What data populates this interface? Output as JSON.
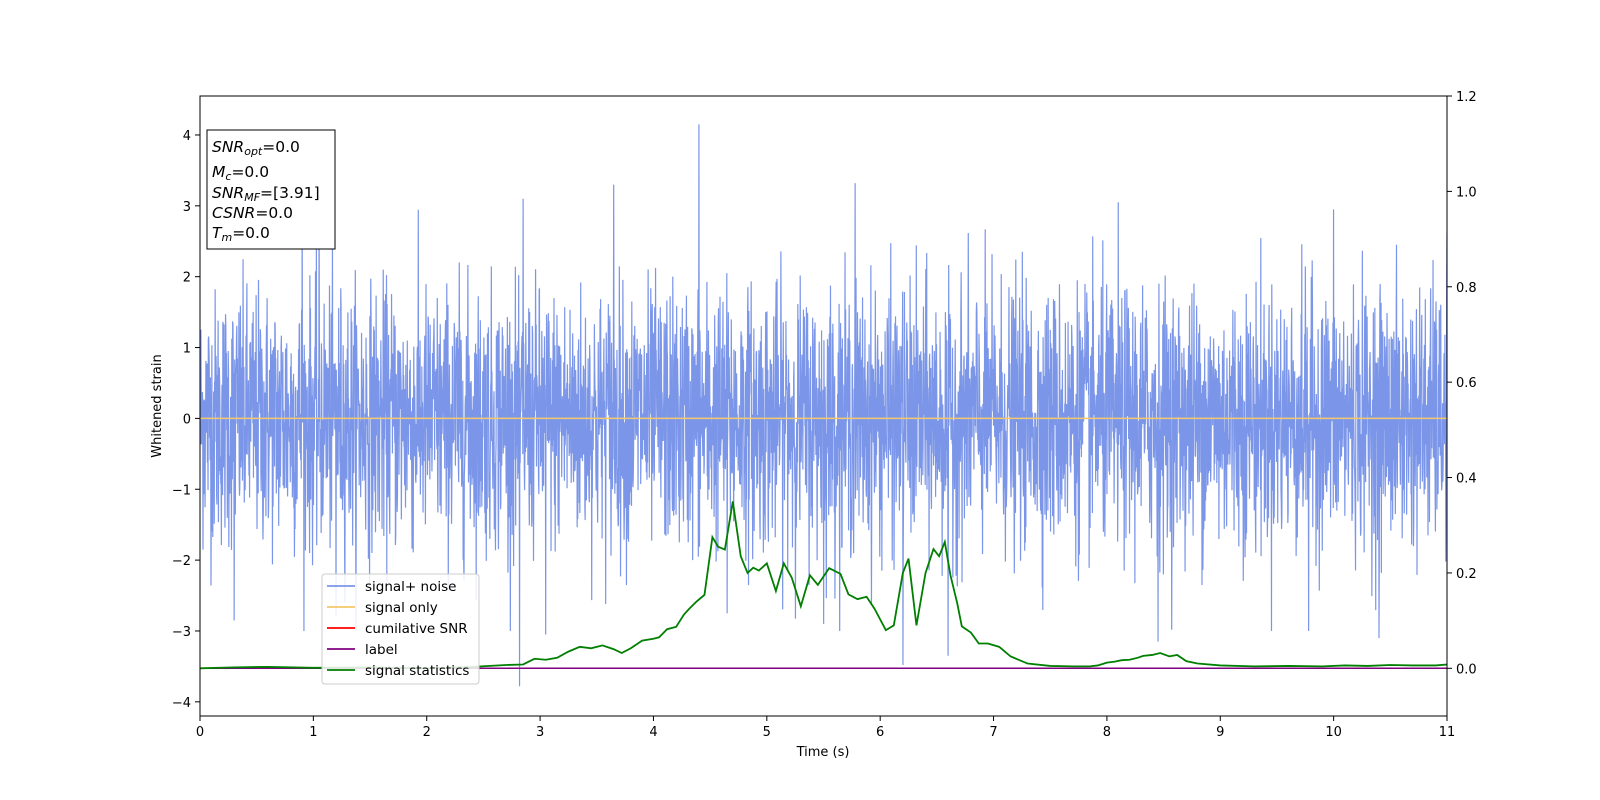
{
  "chart_data": {
    "type": "line",
    "xlabel": "Time (s)",
    "ylabel": "Whitened strain",
    "xlim": [
      0,
      11
    ],
    "ylim": [
      -4.2,
      4.55
    ],
    "ylim_right": [
      -0.1,
      1.2
    ],
    "x_ticks": [
      0,
      1,
      2,
      3,
      4,
      5,
      6,
      7,
      8,
      9,
      10,
      11
    ],
    "y_ticks": [
      -4,
      -3,
      -2,
      -1,
      0,
      1,
      2,
      3,
      4
    ],
    "y_ticks_right": [
      0.0,
      0.2,
      0.4,
      0.6,
      0.8,
      1.0,
      1.2
    ],
    "legend_position": "lower-left",
    "legend": [
      {
        "label": "signal+ noise",
        "color": "#7b96e8"
      },
      {
        "label": "signal only",
        "color": "#f5c86b"
      },
      {
        "label": "cumilative SNR",
        "color": "#ff0000"
      },
      {
        "label": "label",
        "color": "#800080"
      },
      {
        "label": "signal statistics",
        "color": "#007f00"
      }
    ],
    "annotation": [
      {
        "base": "SNR",
        "sub": "opt",
        "value": "=0.0"
      },
      {
        "base": "M",
        "sub": "c",
        "value": "=0.0"
      },
      {
        "base": "SNR",
        "sub": "MF",
        "value": "=[3.91]"
      },
      {
        "base": "CSNR",
        "sub": "",
        "value": "=0.0"
      },
      {
        "base": "T",
        "sub": "m",
        "value": "=0.0"
      }
    ],
    "series": [
      {
        "name": "signal+ noise",
        "axis": "left",
        "color": "#7b96e8",
        "description_spikes": [
          [
            0.9,
            3.1
          ],
          [
            1.05,
            3.1
          ],
          [
            2.85,
            3.1
          ],
          [
            3.65,
            3.3
          ],
          [
            4.4,
            4.15
          ],
          [
            5.78,
            3.32
          ],
          [
            8.1,
            3.05
          ],
          [
            10.0,
            2.95
          ],
          [
            11.0,
            2.62
          ],
          [
            0.3,
            -2.85
          ],
          [
            2.82,
            -3.78
          ],
          [
            3.05,
            -3.05
          ],
          [
            4.65,
            -2.75
          ],
          [
            6.2,
            -3.48
          ],
          [
            6.6,
            -3.35
          ],
          [
            8.45,
            -3.15
          ],
          [
            9.78,
            -3.0
          ],
          [
            10.4,
            -3.1
          ],
          [
            1.2,
            -2.8
          ],
          [
            5.5,
            -2.9
          ]
        ],
        "noise_amplitude": 1.45
      },
      {
        "name": "signal only",
        "axis": "left",
        "color": "#f5c86b",
        "x": [
          0,
          11
        ],
        "y": [
          0,
          0
        ]
      },
      {
        "name": "label",
        "axis": "right",
        "color": "#800080",
        "x": [
          0,
          11
        ],
        "y": [
          0,
          0
        ]
      },
      {
        "name": "signal statistics",
        "axis": "right",
        "color": "#007f00",
        "x": [
          0,
          0.3,
          0.6,
          1.0,
          1.5,
          2.0,
          2.4,
          2.7,
          2.85,
          2.95,
          3.05,
          3.15,
          3.25,
          3.35,
          3.45,
          3.55,
          3.65,
          3.72,
          3.8,
          3.9,
          4.0,
          4.05,
          4.12,
          4.2,
          4.27,
          4.32,
          4.38,
          4.45,
          4.52,
          4.57,
          4.63,
          4.7,
          4.77,
          4.83,
          4.88,
          4.93,
          5.0,
          5.08,
          5.15,
          5.22,
          5.3,
          5.38,
          5.45,
          5.55,
          5.65,
          5.72,
          5.8,
          5.88,
          5.95,
          6.05,
          6.12,
          6.2,
          6.25,
          6.32,
          6.4,
          6.47,
          6.52,
          6.57,
          6.62,
          6.68,
          6.72,
          6.8,
          6.87,
          6.95,
          7.05,
          7.15,
          7.3,
          7.5,
          7.7,
          7.85,
          7.92,
          8.0,
          8.07,
          8.13,
          8.2,
          8.27,
          8.32,
          8.4,
          8.47,
          8.55,
          8.62,
          8.7,
          8.8,
          9.0,
          9.3,
          9.6,
          9.9,
          10.1,
          10.3,
          10.5,
          10.7,
          10.9,
          11.0
        ],
        "y": [
          0.0,
          0.002,
          0.003,
          0.001,
          0.002,
          0.0,
          0.003,
          0.007,
          0.008,
          0.02,
          0.018,
          0.022,
          0.035,
          0.045,
          0.042,
          0.048,
          0.04,
          0.032,
          0.042,
          0.058,
          0.062,
          0.065,
          0.082,
          0.087,
          0.113,
          0.126,
          0.14,
          0.154,
          0.275,
          0.255,
          0.249,
          0.35,
          0.235,
          0.2,
          0.211,
          0.205,
          0.22,
          0.162,
          0.22,
          0.19,
          0.13,
          0.195,
          0.175,
          0.21,
          0.198,
          0.155,
          0.145,
          0.15,
          0.125,
          0.08,
          0.09,
          0.2,
          0.23,
          0.09,
          0.2,
          0.25,
          0.235,
          0.265,
          0.195,
          0.136,
          0.088,
          0.075,
          0.052,
          0.052,
          0.045,
          0.025,
          0.01,
          0.005,
          0.004,
          0.004,
          0.006,
          0.012,
          0.014,
          0.017,
          0.018,
          0.022,
          0.026,
          0.028,
          0.032,
          0.025,
          0.028,
          0.015,
          0.01,
          0.006,
          0.004,
          0.005,
          0.004,
          0.006,
          0.005,
          0.007,
          0.006,
          0.006,
          0.008
        ]
      }
    ]
  }
}
